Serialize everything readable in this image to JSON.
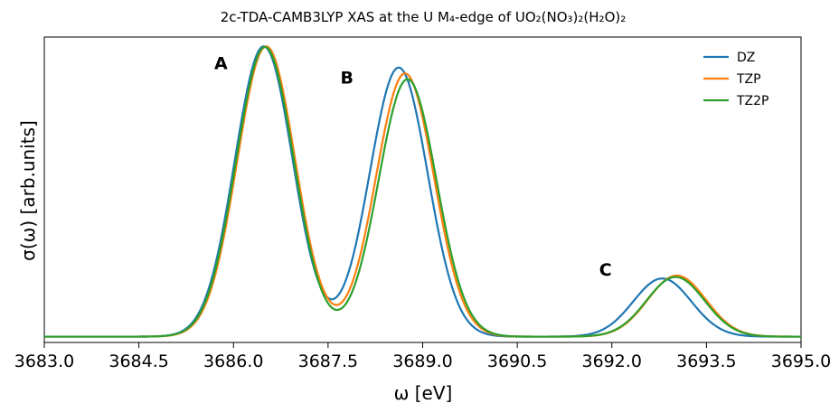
{
  "chart_data": {
    "type": "line",
    "title": "2c-TDA-CAMB3LYP XAS at the U M₄-edge of UO₂(NO₃)₂(H₂O)₂",
    "xlabel": "ω [eV]",
    "ylabel": "σ(ω) [arb.units]",
    "xlim": [
      3683.0,
      3695.0
    ],
    "ylim": [
      -0.02,
      1.03
    ],
    "xticks": [
      "3683.0",
      "3684.5",
      "3686.0",
      "3687.5",
      "3689.0",
      "3690.5",
      "3692.0",
      "3693.5",
      "3695.0"
    ],
    "yticks": [],
    "grid": false,
    "legend_position": "top-right",
    "series": [
      {
        "name": "DZ",
        "color": "#1f77b4",
        "peaks": [
          {
            "center": 3686.48,
            "height": 0.998,
            "sigma": 0.46
          },
          {
            "center": 3688.62,
            "height": 0.925,
            "sigma": 0.46
          },
          {
            "center": 3692.8,
            "height": 0.2,
            "sigma": 0.46
          }
        ]
      },
      {
        "name": "TZP",
        "color": "#ff7f0e",
        "peaks": [
          {
            "center": 3686.52,
            "height": 0.998,
            "sigma": 0.46
          },
          {
            "center": 3688.72,
            "height": 0.905,
            "sigma": 0.46
          },
          {
            "center": 3693.03,
            "height": 0.21,
            "sigma": 0.46
          }
        ]
      },
      {
        "name": "TZ2P",
        "color": "#2ca02c",
        "peaks": [
          {
            "center": 3686.5,
            "height": 0.996,
            "sigma": 0.46
          },
          {
            "center": 3688.76,
            "height": 0.885,
            "sigma": 0.46
          },
          {
            "center": 3693.01,
            "height": 0.205,
            "sigma": 0.46
          }
        ]
      }
    ],
    "annotations": [
      {
        "text": "A",
        "x": 3685.8,
        "y": 0.92
      },
      {
        "text": "B",
        "x": 3687.8,
        "y": 0.87
      },
      {
        "text": "C",
        "x": 3691.9,
        "y": 0.21
      }
    ]
  }
}
